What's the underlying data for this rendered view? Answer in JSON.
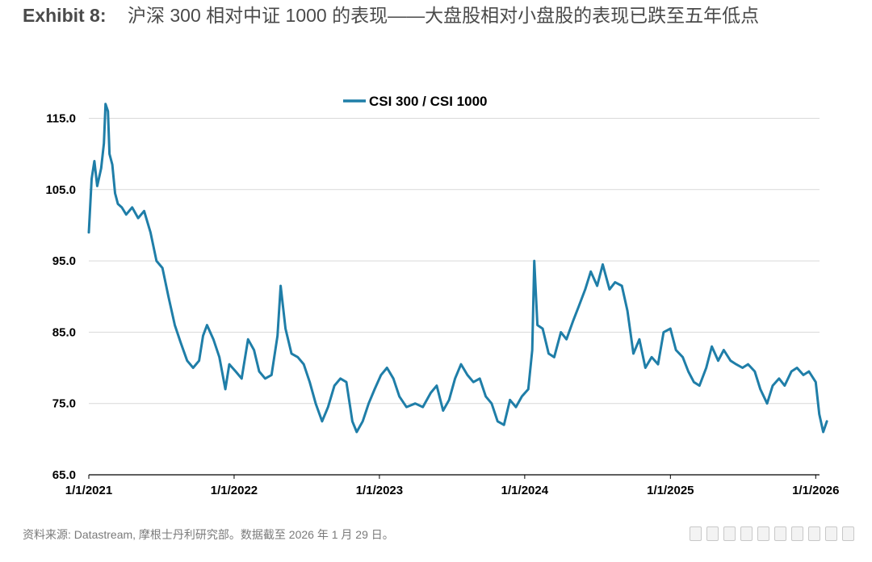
{
  "header": {
    "label": "Exhibit 8:",
    "title": "沪深 300 相对中证 1000 的表现——大盘股相对小盘股的表现已跌至五年低点"
  },
  "footer": {
    "source": "资料来源: Datastream, 摩根士丹利研究部。数据截至 2026 年 1 月 29 日。"
  },
  "colors": {
    "series": "#1f7ea8",
    "grid": "#d9d9d9",
    "axis": "#000000"
  },
  "chart_data": {
    "type": "line",
    "title": "",
    "xlabel": "",
    "ylabel": "",
    "ylim": [
      65,
      118
    ],
    "y_ticks": [
      "65.0",
      "75.0",
      "85.0",
      "95.0",
      "105.0",
      "115.0"
    ],
    "x_ticks": [
      "1/1/2021",
      "1/1/2022",
      "1/1/2023",
      "1/1/2024",
      "1/1/2025",
      "1/1/2026"
    ],
    "legend_position": "top-center",
    "grid": true,
    "series": [
      {
        "name": "CSI 300 / CSI 1000",
        "points": [
          [
            "2021-01-01",
            99.0
          ],
          [
            "2021-01-08",
            106.5
          ],
          [
            "2021-01-15",
            109.0
          ],
          [
            "2021-01-22",
            105.5
          ],
          [
            "2021-02-01",
            108.0
          ],
          [
            "2021-02-08",
            111.5
          ],
          [
            "2021-02-12",
            117.0
          ],
          [
            "2021-02-18",
            116.0
          ],
          [
            "2021-02-22",
            110.0
          ],
          [
            "2021-03-01",
            108.5
          ],
          [
            "2021-03-08",
            104.5
          ],
          [
            "2021-03-15",
            103.0
          ],
          [
            "2021-03-25",
            102.5
          ],
          [
            "2021-04-05",
            101.5
          ],
          [
            "2021-04-20",
            102.5
          ],
          [
            "2021-05-05",
            101.0
          ],
          [
            "2021-05-20",
            102.0
          ],
          [
            "2021-06-05",
            99.0
          ],
          [
            "2021-06-20",
            95.0
          ],
          [
            "2021-07-05",
            94.0
          ],
          [
            "2021-07-20",
            90.0
          ],
          [
            "2021-08-05",
            86.0
          ],
          [
            "2021-08-20",
            83.5
          ],
          [
            "2021-09-05",
            81.0
          ],
          [
            "2021-09-20",
            80.0
          ],
          [
            "2021-10-05",
            81.0
          ],
          [
            "2021-10-15",
            84.5
          ],
          [
            "2021-10-25",
            86.0
          ],
          [
            "2021-11-10",
            84.0
          ],
          [
            "2021-11-25",
            81.5
          ],
          [
            "2021-12-10",
            77.0
          ],
          [
            "2021-12-20",
            80.5
          ],
          [
            "2022-01-05",
            79.5
          ],
          [
            "2022-01-20",
            78.5
          ],
          [
            "2022-02-05",
            84.0
          ],
          [
            "2022-02-20",
            82.5
          ],
          [
            "2022-03-05",
            79.5
          ],
          [
            "2022-03-20",
            78.5
          ],
          [
            "2022-04-05",
            79.0
          ],
          [
            "2022-04-20",
            84.5
          ],
          [
            "2022-04-28",
            91.5
          ],
          [
            "2022-05-10",
            85.5
          ],
          [
            "2022-05-25",
            82.0
          ],
          [
            "2022-06-10",
            81.5
          ],
          [
            "2022-06-25",
            80.5
          ],
          [
            "2022-07-10",
            78.0
          ],
          [
            "2022-07-25",
            75.0
          ],
          [
            "2022-08-10",
            72.5
          ],
          [
            "2022-08-25",
            74.5
          ],
          [
            "2022-09-10",
            77.5
          ],
          [
            "2022-09-25",
            78.5
          ],
          [
            "2022-10-10",
            78.0
          ],
          [
            "2022-10-25",
            72.5
          ],
          [
            "2022-11-05",
            71.0
          ],
          [
            "2022-11-20",
            72.5
          ],
          [
            "2022-12-05",
            75.0
          ],
          [
            "2022-12-20",
            77.0
          ],
          [
            "2023-01-05",
            79.0
          ],
          [
            "2023-01-20",
            80.0
          ],
          [
            "2023-02-05",
            78.5
          ],
          [
            "2023-02-20",
            76.0
          ],
          [
            "2023-03-10",
            74.5
          ],
          [
            "2023-04-01",
            75.0
          ],
          [
            "2023-04-20",
            74.5
          ],
          [
            "2023-05-10",
            76.5
          ],
          [
            "2023-05-25",
            77.5
          ],
          [
            "2023-06-10",
            74.0
          ],
          [
            "2023-06-25",
            75.5
          ],
          [
            "2023-07-10",
            78.5
          ],
          [
            "2023-07-25",
            80.5
          ],
          [
            "2023-08-10",
            79.0
          ],
          [
            "2023-08-25",
            78.0
          ],
          [
            "2023-09-10",
            78.5
          ],
          [
            "2023-09-25",
            76.0
          ],
          [
            "2023-10-10",
            75.0
          ],
          [
            "2023-10-25",
            72.5
          ],
          [
            "2023-11-10",
            72.0
          ],
          [
            "2023-11-25",
            75.5
          ],
          [
            "2023-12-10",
            74.5
          ],
          [
            "2023-12-25",
            76.0
          ],
          [
            "2024-01-10",
            77.0
          ],
          [
            "2024-01-20",
            82.5
          ],
          [
            "2024-01-25",
            95.0
          ],
          [
            "2024-02-02",
            86.0
          ],
          [
            "2024-02-15",
            85.5
          ],
          [
            "2024-03-01",
            82.0
          ],
          [
            "2024-03-15",
            81.5
          ],
          [
            "2024-04-01",
            85.0
          ],
          [
            "2024-04-15",
            84.0
          ],
          [
            "2024-05-01",
            86.5
          ],
          [
            "2024-05-15",
            88.5
          ],
          [
            "2024-06-01",
            91.0
          ],
          [
            "2024-06-15",
            93.5
          ],
          [
            "2024-07-01",
            91.5
          ],
          [
            "2024-07-15",
            94.5
          ],
          [
            "2024-08-01",
            91.0
          ],
          [
            "2024-08-15",
            92.0
          ],
          [
            "2024-09-01",
            91.5
          ],
          [
            "2024-09-15",
            88.0
          ],
          [
            "2024-09-30",
            82.0
          ],
          [
            "2024-10-15",
            84.0
          ],
          [
            "2024-10-30",
            80.0
          ],
          [
            "2024-11-15",
            81.5
          ],
          [
            "2024-12-01",
            80.5
          ],
          [
            "2024-12-15",
            85.0
          ],
          [
            "2025-01-01",
            85.5
          ],
          [
            "2025-01-15",
            82.5
          ],
          [
            "2025-02-01",
            81.5
          ],
          [
            "2025-02-15",
            79.5
          ],
          [
            "2025-03-01",
            78.0
          ],
          [
            "2025-03-15",
            77.5
          ],
          [
            "2025-04-01",
            80.0
          ],
          [
            "2025-04-15",
            83.0
          ],
          [
            "2025-05-01",
            81.0
          ],
          [
            "2025-05-15",
            82.5
          ],
          [
            "2025-06-01",
            81.0
          ],
          [
            "2025-06-15",
            80.5
          ],
          [
            "2025-07-01",
            80.0
          ],
          [
            "2025-07-15",
            80.5
          ],
          [
            "2025-08-01",
            79.5
          ],
          [
            "2025-08-15",
            77.0
          ],
          [
            "2025-09-01",
            75.0
          ],
          [
            "2025-09-15",
            77.5
          ],
          [
            "2025-10-01",
            78.5
          ],
          [
            "2025-10-15",
            77.5
          ],
          [
            "2025-11-01",
            79.5
          ],
          [
            "2025-11-15",
            80.0
          ],
          [
            "2025-12-01",
            79.0
          ],
          [
            "2025-12-15",
            79.5
          ],
          [
            "2026-01-01",
            78.0
          ],
          [
            "2026-01-10",
            73.5
          ],
          [
            "2026-01-20",
            71.0
          ],
          [
            "2026-01-29",
            72.5
          ]
        ]
      }
    ]
  }
}
